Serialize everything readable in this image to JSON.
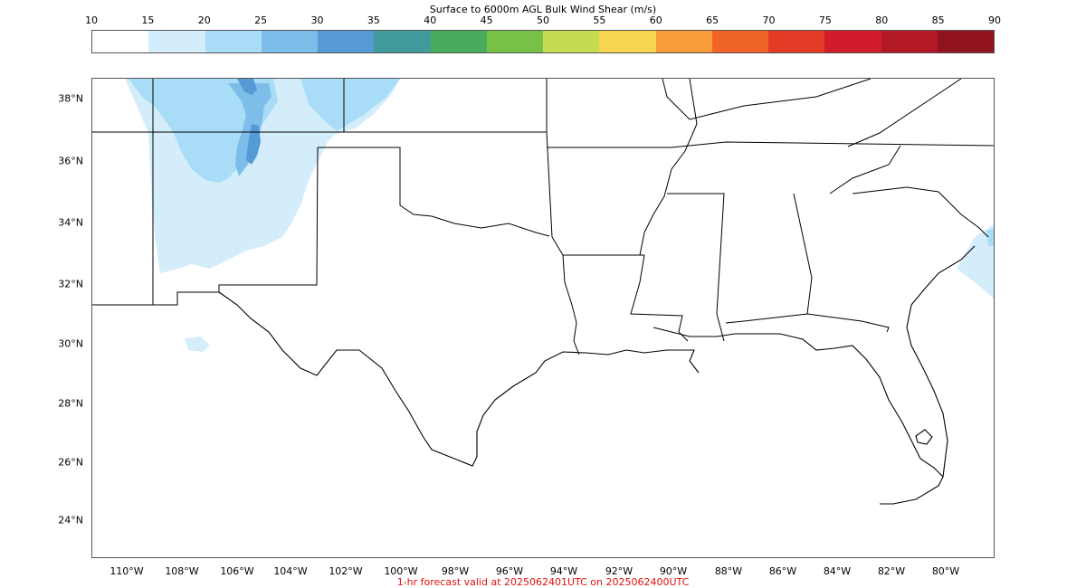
{
  "colorbar": {
    "title": "Surface to 6000m AGL Bulk Wind Shear (m/s)",
    "ticks": [
      "10",
      "15",
      "20",
      "25",
      "30",
      "35",
      "40",
      "45",
      "50",
      "55",
      "60",
      "65",
      "70",
      "75",
      "80",
      "85",
      "90"
    ],
    "colors": [
      "#ffffff",
      "#d4edfb",
      "#a8dcf7",
      "#7dbde9",
      "#5599d5",
      "#419a9c",
      "#48ac5c",
      "#77c246",
      "#c5dc52",
      "#f8d551",
      "#f79c37",
      "#f16428",
      "#e23c27",
      "#d11d2b",
      "#b31925",
      "#911320"
    ]
  },
  "map": {
    "lat_labels": [
      "38°N",
      "36°N",
      "34°N",
      "32°N",
      "30°N",
      "28°N",
      "26°N",
      "24°N"
    ],
    "lon_labels": [
      "110°W",
      "108°W",
      "106°W",
      "104°W",
      "102°W",
      "100°W",
      "98°W",
      "96°W",
      "94°W",
      "92°W",
      "90°W",
      "88°W",
      "86°W",
      "84°W",
      "82°W",
      "80°W"
    ]
  },
  "footer": {
    "valid_text": "1-hr forecast valid at 2025062401UTC on 2025062400UTC"
  }
}
